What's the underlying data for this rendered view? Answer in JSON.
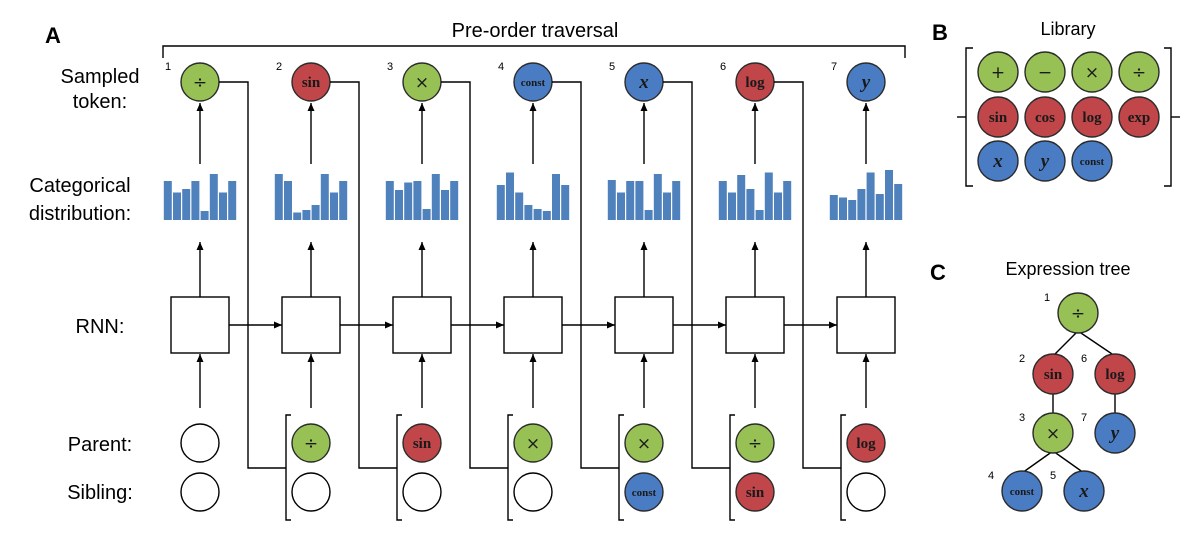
{
  "colors": {
    "green": "#97c155",
    "red": "#c0464a",
    "blue": "#4a7cc4",
    "bar": "#4f81bd",
    "stroke": "#2b2b2b"
  },
  "panel_a": {
    "letter": "A",
    "traversal_label": "Pre-order traversal",
    "labels": {
      "sampled_line1": "Sampled",
      "sampled_line2": "token:",
      "categorical_line1": "Categorical",
      "categorical_line2": "distribution:",
      "rnn": "RNN:",
      "parent": "Parent:",
      "sibling": "Sibling:"
    },
    "steps": [
      {
        "index": "1",
        "token": {
          "text": "÷",
          "kind": "binary"
        },
        "parent": null,
        "sibling": null,
        "bars": [
          0.78,
          0.55,
          0.62,
          0.78,
          0.18,
          0.92,
          0.55,
          0.78
        ]
      },
      {
        "index": "2",
        "token": {
          "text": "sin",
          "kind": "unary"
        },
        "parent": {
          "text": "÷",
          "kind": "binary"
        },
        "sibling": null,
        "bars": [
          0.92,
          0.78,
          0.15,
          0.2,
          0.3,
          0.92,
          0.55,
          0.78
        ]
      },
      {
        "index": "3",
        "token": {
          "text": "×",
          "kind": "binary"
        },
        "parent": {
          "text": "sin",
          "kind": "unary"
        },
        "sibling": null,
        "bars": [
          0.78,
          0.6,
          0.75,
          0.78,
          0.22,
          0.92,
          0.6,
          0.78
        ]
      },
      {
        "index": "4",
        "token": {
          "text": "const",
          "kind": "terminal"
        },
        "parent": {
          "text": "×",
          "kind": "binary"
        },
        "sibling": null,
        "bars": [
          0.7,
          0.95,
          0.55,
          0.3,
          0.22,
          0.18,
          0.92,
          0.7
        ]
      },
      {
        "index": "5",
        "token": {
          "text": "x",
          "kind": "variable"
        },
        "parent": {
          "text": "×",
          "kind": "binary"
        },
        "sibling": {
          "text": "const",
          "kind": "terminal"
        },
        "bars": [
          0.8,
          0.55,
          0.78,
          0.78,
          0.2,
          0.92,
          0.55,
          0.78
        ]
      },
      {
        "index": "6",
        "token": {
          "text": "log",
          "kind": "unary"
        },
        "parent": {
          "text": "÷",
          "kind": "binary"
        },
        "sibling": {
          "text": "sin",
          "kind": "unary"
        },
        "bars": [
          0.78,
          0.55,
          0.9,
          0.62,
          0.2,
          0.95,
          0.55,
          0.78
        ]
      },
      {
        "index": "7",
        "token": {
          "text": "y",
          "kind": "variable"
        },
        "parent": {
          "text": "log",
          "kind": "unary"
        },
        "sibling": null,
        "bars": [
          0.5,
          0.45,
          0.4,
          0.62,
          0.95,
          0.52,
          1.0,
          0.72
        ]
      }
    ]
  },
  "panel_b": {
    "letter": "B",
    "title": "Library",
    "rows": [
      [
        {
          "text": "+",
          "kind": "binary"
        },
        {
          "text": "−",
          "kind": "binary"
        },
        {
          "text": "×",
          "kind": "binary"
        },
        {
          "text": "÷",
          "kind": "binary"
        }
      ],
      [
        {
          "text": "sin",
          "kind": "unary"
        },
        {
          "text": "cos",
          "kind": "unary"
        },
        {
          "text": "log",
          "kind": "unary"
        },
        {
          "text": "exp",
          "kind": "unary"
        }
      ],
      [
        {
          "text": "x",
          "kind": "variable"
        },
        {
          "text": "y",
          "kind": "variable"
        },
        {
          "text": "const",
          "kind": "terminal"
        }
      ]
    ]
  },
  "panel_c": {
    "letter": "C",
    "title": "Expression tree",
    "nodes": [
      {
        "index": "1",
        "text": "÷",
        "kind": "binary"
      },
      {
        "index": "2",
        "text": "sin",
        "kind": "unary"
      },
      {
        "index": "6",
        "text": "log",
        "kind": "unary"
      },
      {
        "index": "3",
        "text": "×",
        "kind": "binary"
      },
      {
        "index": "7",
        "text": "y",
        "kind": "variable"
      },
      {
        "index": "4",
        "text": "const",
        "kind": "terminal"
      },
      {
        "index": "5",
        "text": "x",
        "kind": "variable"
      }
    ]
  }
}
